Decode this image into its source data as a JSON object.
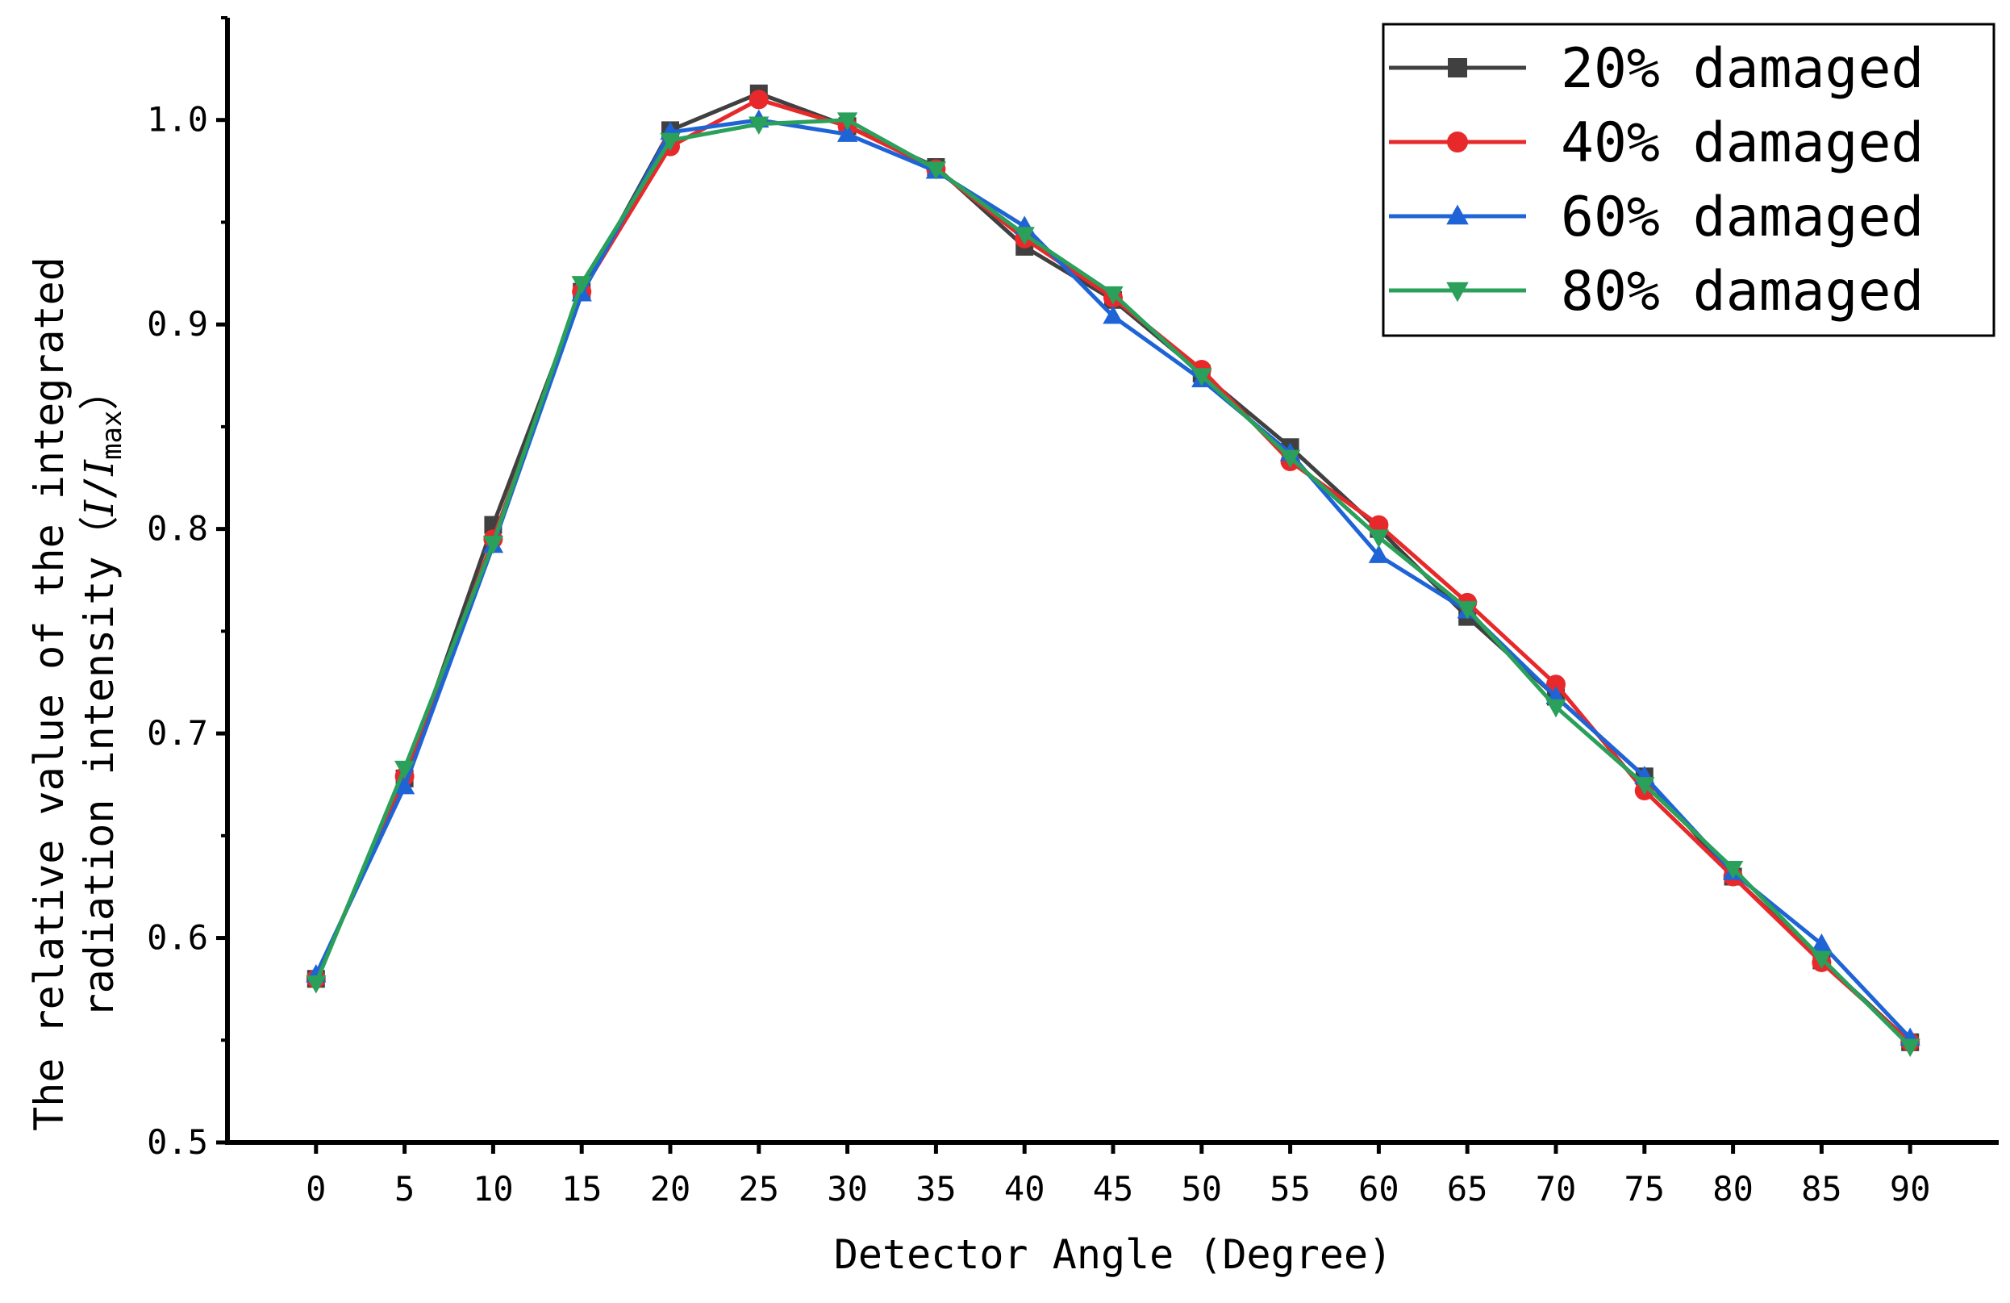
{
  "chart_data": {
    "type": "line",
    "title": "",
    "xlabel": "Detector Angle (Degree)",
    "ylabel_line1": "The relative value of the integrated",
    "ylabel_line2_prefix": "radiation intensity（",
    "ylabel_I": "I",
    "ylabel_slash": "/",
    "ylabel_Imax": "I",
    "ylabel_max_sub": "max",
    "ylabel_line2_suffix": "）",
    "x": [
      0,
      5,
      10,
      15,
      20,
      25,
      30,
      35,
      40,
      45,
      50,
      55,
      60,
      65,
      70,
      75,
      80,
      85,
      90
    ],
    "x_tick_labels": [
      "0",
      "5",
      "10",
      "15",
      "20",
      "25",
      "30",
      "35",
      "40",
      "45",
      "50",
      "55",
      "60",
      "65",
      "70",
      "75",
      "80",
      "85",
      "90"
    ],
    "xlim": [
      -5,
      95
    ],
    "y_ticks": [
      0.5,
      0.6,
      0.7,
      0.8,
      0.9,
      1.0
    ],
    "y_tick_labels": [
      "0.5",
      "0.6",
      "0.7",
      "0.8",
      "0.9",
      "1.0"
    ],
    "ylim": [
      0.5,
      1.05
    ],
    "grid": false,
    "legend_position": "top-right",
    "series": [
      {
        "name": "20% damaged",
        "color": "#404040",
        "marker": "square",
        "values": [
          0.58,
          0.678,
          0.802,
          0.916,
          0.995,
          1.013,
          0.997,
          0.977,
          0.938,
          0.912,
          0.876,
          0.84,
          0.8,
          0.757,
          0.718,
          0.679,
          0.63,
          0.589,
          0.549
        ]
      },
      {
        "name": "40% damaged",
        "color": "#e8292b",
        "marker": "circle",
        "values": [
          0.58,
          0.679,
          0.795,
          0.916,
          0.987,
          1.01,
          0.997,
          0.976,
          0.942,
          0.913,
          0.878,
          0.833,
          0.802,
          0.764,
          0.724,
          0.672,
          0.63,
          0.588,
          0.549
        ]
      },
      {
        "name": "60% damaged",
        "color": "#1f64d6",
        "marker": "triangle-up",
        "values": [
          0.582,
          0.674,
          0.792,
          0.915,
          0.994,
          1.0,
          0.993,
          0.975,
          0.948,
          0.904,
          0.873,
          0.837,
          0.787,
          0.76,
          0.718,
          0.679,
          0.632,
          0.597,
          0.551
        ]
      },
      {
        "name": "80% damaged",
        "color": "#2aa05a",
        "marker": "triangle-down",
        "values": [
          0.578,
          0.683,
          0.793,
          0.92,
          0.99,
          0.998,
          1.0,
          0.976,
          0.944,
          0.915,
          0.875,
          0.835,
          0.796,
          0.761,
          0.713,
          0.675,
          0.634,
          0.59,
          0.547
        ]
      }
    ]
  }
}
